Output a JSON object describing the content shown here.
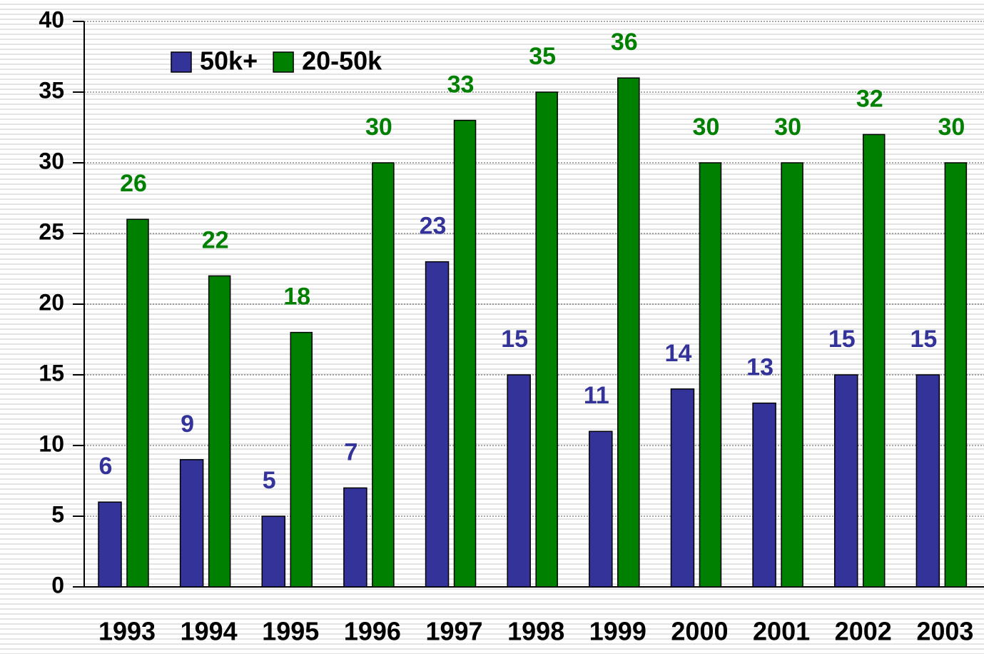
{
  "chart_data": {
    "type": "bar",
    "categories": [
      "1993",
      "1994",
      "1995",
      "1996",
      "1997",
      "1998",
      "1999",
      "2000",
      "2001",
      "2002",
      "2003"
    ],
    "series": [
      {
        "name": "50k+",
        "color": "#333399",
        "values": [
          6,
          9,
          5,
          7,
          23,
          15,
          11,
          14,
          13,
          15,
          15
        ]
      },
      {
        "name": "20-50k",
        "color": "#008000",
        "values": [
          26,
          22,
          18,
          30,
          33,
          35,
          36,
          30,
          30,
          32,
          30
        ]
      }
    ],
    "label_colors": [
      "#333399",
      "#008000"
    ],
    "ylim": [
      0,
      40
    ],
    "yticks": [
      0,
      5,
      10,
      15,
      20,
      25,
      30,
      35,
      40
    ],
    "grid": true
  }
}
